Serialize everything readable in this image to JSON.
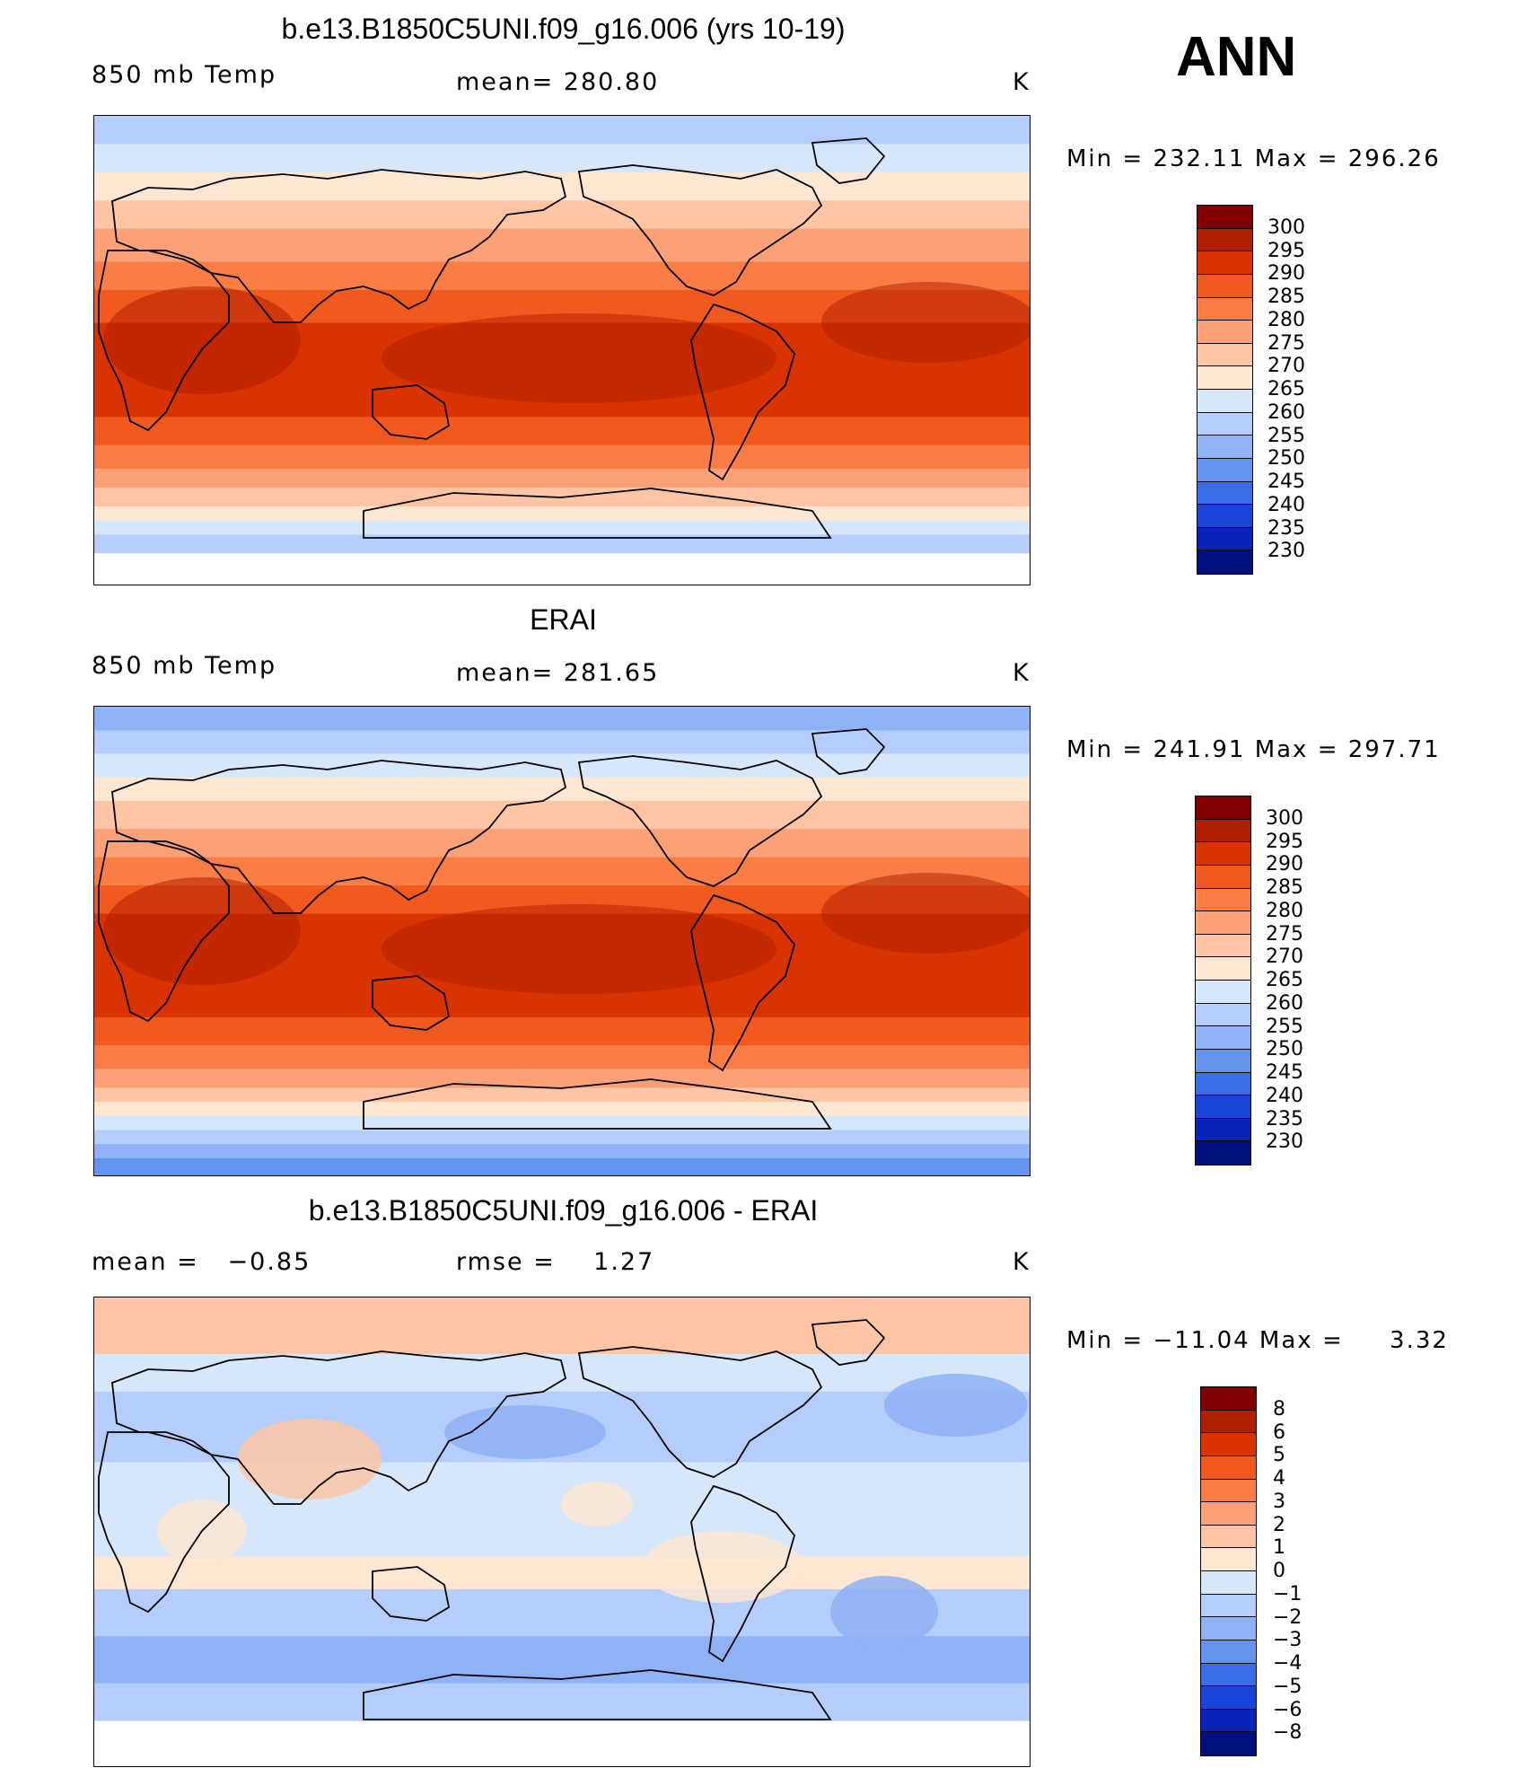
{
  "season": "ANN",
  "units": "K",
  "panels": [
    {
      "title": "b.e13.B1850C5UNI.f09_g16.006 (yrs 10-19)",
      "left_label": "850 mb Temp",
      "center_label": "mean= 280.80",
      "units": "K",
      "minmax": "Min = 232.11 Max = 296.26",
      "colorbar": {
        "levels": [
          "300",
          "295",
          "290",
          "285",
          "280",
          "275",
          "270",
          "265",
          "260",
          "255",
          "250",
          "245",
          "240",
          "235",
          "230"
        ],
        "colors": [
          "#800000",
          "#b01e00",
          "#d93400",
          "#f05a1e",
          "#fa7d46",
          "#fca077",
          "#fdc5a4",
          "#fde6d2",
          "#d6e6fb",
          "#b4cdfa",
          "#8eb2f5",
          "#6492ef",
          "#3a6ee9",
          "#1a44d8",
          "#0a24b8",
          "#00107e"
        ]
      },
      "field": "model"
    },
    {
      "title": "ERAI",
      "left_label": "850 mb Temp",
      "center_label": "mean= 281.65",
      "units": "K",
      "minmax": "Min = 241.91 Max = 297.71",
      "colorbar": {
        "levels": [
          "300",
          "295",
          "290",
          "285",
          "280",
          "275",
          "270",
          "265",
          "260",
          "255",
          "250",
          "245",
          "240",
          "235",
          "230"
        ],
        "colors": [
          "#800000",
          "#b01e00",
          "#d93400",
          "#f05a1e",
          "#fa7d46",
          "#fca077",
          "#fdc5a4",
          "#fde6d2",
          "#d6e6fb",
          "#b4cdfa",
          "#8eb2f5",
          "#6492ef",
          "#3a6ee9",
          "#1a44d8",
          "#0a24b8",
          "#00107e"
        ]
      },
      "field": "obs"
    },
    {
      "title": "b.e13.B1850C5UNI.f09_g16.006 - ERAI",
      "left_label": "mean =   −0.85",
      "center_label": "rmse =    1.27",
      "units": "K",
      "minmax": "Min = −11.04 Max =     3.32",
      "colorbar": {
        "levels": [
          "8",
          "6",
          "5",
          "4",
          "3",
          "2",
          "1",
          "0",
          "−1",
          "−2",
          "−3",
          "−4",
          "−5",
          "−6",
          "−8"
        ],
        "colors": [
          "#800000",
          "#b01e00",
          "#d93400",
          "#f05a1e",
          "#fa7d46",
          "#fca077",
          "#fdc5a4",
          "#fde6d2",
          "#d6e6fb",
          "#b4cdfa",
          "#8eb2f5",
          "#6492ef",
          "#3a6ee9",
          "#1a44d8",
          "#0a24b8",
          "#00107e"
        ]
      },
      "field": "diff"
    }
  ]
}
